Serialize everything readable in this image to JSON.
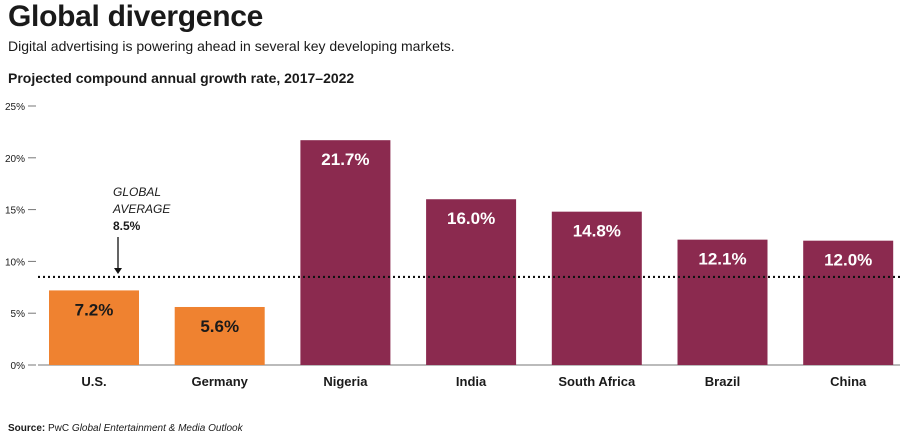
{
  "header": {
    "title": "Global divergence",
    "subtitle": "Digital advertising is powering ahead in several key developing markets."
  },
  "chart_heading": "Projected compound annual growth rate, 2017–2022",
  "source": {
    "label": "Source:",
    "publisher": "PwC",
    "publication": "Global Entertainment & Media Outlook"
  },
  "colors": {
    "developed": "#ef8230",
    "developing": "#8b2a4f",
    "axis": "#777777",
    "text": "#1a1a1a"
  },
  "chart_data": {
    "type": "bar",
    "title": "Projected compound annual growth rate, 2017–2022",
    "xlabel": "",
    "ylabel": "",
    "ylim": [
      0,
      25
    ],
    "yticks": [
      0,
      5,
      10,
      15,
      20,
      25
    ],
    "ytick_labels": [
      "0%",
      "5%",
      "10%",
      "15%",
      "20%",
      "25%"
    ],
    "categories": [
      "U.S.",
      "Germany",
      "Nigeria",
      "India",
      "South Africa",
      "Brazil",
      "China"
    ],
    "values": [
      7.2,
      5.6,
      21.7,
      16.0,
      14.8,
      12.1,
      12.0
    ],
    "value_labels": [
      "7.2%",
      "5.6%",
      "21.7%",
      "16.0%",
      "14.8%",
      "12.1%",
      "12.0%"
    ],
    "bar_groups": [
      "developed",
      "developed",
      "developing",
      "developing",
      "developing",
      "developing",
      "developing"
    ],
    "reference_line": {
      "value": 8.5,
      "label_line1": "GLOBAL",
      "label_line2": "AVERAGE",
      "label_value": "8.5%",
      "style": "dotted"
    }
  }
}
